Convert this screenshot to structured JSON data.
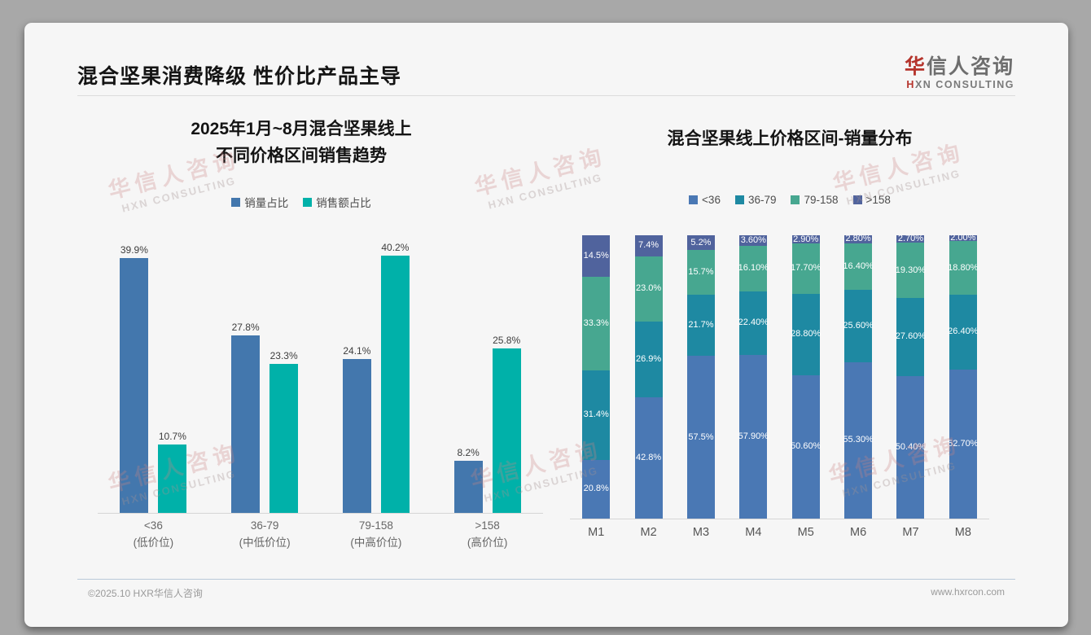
{
  "slide": {
    "title": "混合坚果消费降级 性价比产品主导",
    "logo": {
      "cn_first": "华",
      "cn_rest": "信人咨询",
      "en_first": "H",
      "en_rest": "XN CONSULTING",
      "accent_color": "#b5342c"
    },
    "watermark": {
      "cn": "华信人咨询",
      "en": "HXN CONSULTING"
    },
    "footer": {
      "left": "©2025.10 HXR华信人咨询",
      "right": "www.hxrcon.com"
    }
  },
  "chart_data": [
    {
      "type": "bar",
      "stacked": false,
      "title": "2025年1月~8月混合坚果线上 不同价格区间销售趋势",
      "title_lines": [
        "2025年1月~8月混合坚果线上",
        "不同价格区间销售趋势"
      ],
      "categories": [
        "<36",
        "36-79",
        "79-158",
        ">158"
      ],
      "category_sublabels": [
        "(低价位)",
        "(中低价位)",
        "(中高价位)",
        "(高价位)"
      ],
      "series": [
        {
          "name": "销量占比",
          "color": "#4377ad",
          "values": [
            39.9,
            27.8,
            24.1,
            8.2
          ],
          "labels": [
            "39.9%",
            "27.8%",
            "24.1%",
            "8.2%"
          ]
        },
        {
          "name": "销售额占比",
          "color": "#00b1a9",
          "values": [
            10.7,
            23.3,
            40.2,
            25.8
          ],
          "labels": [
            "10.7%",
            "23.3%",
            "40.2%",
            "25.8%"
          ]
        }
      ],
      "ylim": [
        0,
        43
      ],
      "grid": false,
      "legend_position": "top"
    },
    {
      "type": "bar",
      "stacked": true,
      "title": "混合坚果线上价格区间-销量分布",
      "title_lines": [
        "混合坚果线上价格区间-销量分布"
      ],
      "categories": [
        "M1",
        "M2",
        "M3",
        "M4",
        "M5",
        "M6",
        "M7",
        "M8"
      ],
      "series": [
        {
          "name": "<36",
          "color": "#4a78b4",
          "values": [
            20.8,
            42.8,
            57.5,
            57.9,
            50.6,
            55.3,
            50.4,
            52.7
          ],
          "labels": [
            "20.8%",
            "42.8%",
            "57.5%",
            "57.90%",
            "50.60%",
            "55.30%",
            "50.40%",
            "52.70%"
          ]
        },
        {
          "name": "36-79",
          "color": "#1e89a2",
          "values": [
            31.4,
            26.9,
            21.7,
            22.4,
            28.8,
            25.6,
            27.6,
            26.4
          ],
          "labels": [
            "31.4%",
            "26.9%",
            "21.7%",
            "22.40%",
            "28.80%",
            "25.60%",
            "27.60%",
            "26.40%"
          ]
        },
        {
          "name": "79-158",
          "color": "#47a790",
          "values": [
            33.3,
            23.0,
            15.7,
            16.1,
            17.7,
            16.4,
            19.3,
            18.8
          ],
          "labels": [
            "33.3%",
            "23.0%",
            "15.7%",
            "16.10%",
            "17.70%",
            "16.40%",
            "19.30%",
            "18.80%"
          ]
        },
        {
          "name": ">158",
          "color": "#50639d",
          "values": [
            14.5,
            7.4,
            5.2,
            3.6,
            2.9,
            2.8,
            2.7,
            2.0
          ],
          "labels": [
            "14.5%",
            "7.4%",
            "5.2%",
            "3.60%",
            "2.90%",
            "2.80%",
            "2.70%",
            "2.00%"
          ]
        }
      ],
      "ylim": [
        0,
        100
      ],
      "grid": false,
      "legend_position": "top"
    }
  ]
}
